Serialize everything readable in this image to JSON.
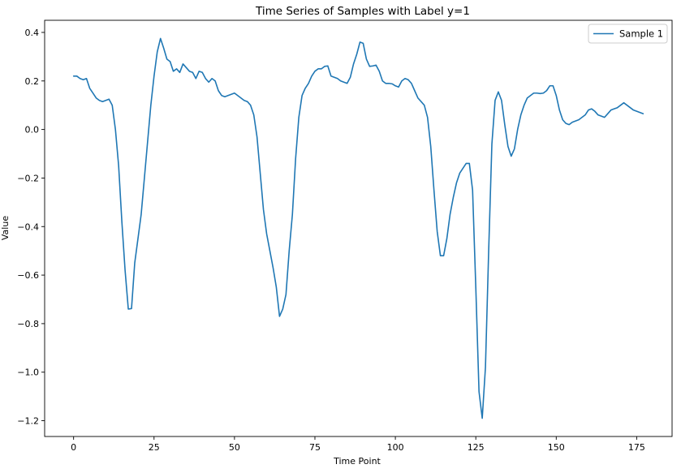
{
  "chart_data": {
    "type": "line",
    "title": "Time Series of Samples with Label y=1",
    "xlabel": "Time Point",
    "ylabel": "Value",
    "xlim": [
      -9,
      186
    ],
    "ylim": [
      -1.265,
      0.45
    ],
    "xticks": [
      0,
      25,
      50,
      75,
      100,
      125,
      150,
      175
    ],
    "xtick_labels": [
      "0",
      "25",
      "50",
      "75",
      "100",
      "125",
      "150",
      "175"
    ],
    "yticks": [
      0.4,
      0.2,
      0.0,
      -0.2,
      -0.4,
      -0.6,
      -0.8,
      -1.0,
      -1.2
    ],
    "ytick_labels": [
      "0.4",
      "0.2",
      "0.0",
      "−0.2",
      "−0.4",
      "−0.6",
      "−0.8",
      "−1.0",
      "−1.2"
    ],
    "grid": false,
    "legend_position": "top-right",
    "series": [
      {
        "name": "Sample 1",
        "color": "#1f77b4",
        "x": [
          0,
          1,
          2,
          3,
          4,
          5,
          6,
          7,
          8,
          9,
          10,
          11,
          12,
          13,
          14,
          15,
          16,
          17,
          18,
          19,
          20,
          21,
          22,
          23,
          24,
          25,
          26,
          27,
          28,
          29,
          30,
          31,
          32,
          33,
          34,
          35,
          36,
          37,
          38,
          39,
          40,
          41,
          42,
          43,
          44,
          45,
          46,
          47,
          48,
          49,
          50,
          51,
          52,
          53,
          54,
          55,
          56,
          57,
          58,
          59,
          60,
          61,
          62,
          63,
          64,
          65,
          66,
          67,
          68,
          69,
          70,
          71,
          72,
          73,
          74,
          75,
          76,
          77,
          78,
          79,
          80,
          81,
          82,
          83,
          84,
          85,
          86,
          87,
          88,
          89,
          90,
          91,
          92,
          93,
          94,
          95,
          96,
          97,
          98,
          99,
          100,
          101,
          102,
          103,
          104,
          105,
          106,
          107,
          108,
          109,
          110,
          111,
          112,
          113,
          114,
          115,
          116,
          117,
          118,
          119,
          120,
          121,
          122,
          123,
          124,
          125,
          126,
          127,
          128,
          129,
          130,
          131,
          132,
          133,
          134,
          135,
          136,
          137,
          138,
          139,
          140,
          141,
          142,
          143,
          144,
          145,
          146,
          147,
          148,
          149,
          150,
          151,
          152,
          153,
          154,
          155,
          156,
          157,
          158,
          159,
          160,
          161,
          162,
          163,
          164,
          165,
          166,
          167,
          168,
          169,
          170,
          171,
          172,
          173,
          174,
          175,
          176,
          177
        ],
        "values": [
          0.22,
          0.22,
          0.21,
          0.205,
          0.21,
          0.17,
          0.15,
          0.13,
          0.12,
          0.115,
          0.12,
          0.125,
          0.1,
          0.0,
          -0.15,
          -0.38,
          -0.58,
          -0.74,
          -0.738,
          -0.55,
          -0.45,
          -0.35,
          -0.2,
          -0.05,
          0.1,
          0.22,
          0.32,
          0.375,
          0.335,
          0.29,
          0.28,
          0.24,
          0.25,
          0.235,
          0.27,
          0.255,
          0.24,
          0.235,
          0.21,
          0.24,
          0.235,
          0.21,
          0.195,
          0.21,
          0.2,
          0.16,
          0.14,
          0.135,
          0.14,
          0.145,
          0.15,
          0.14,
          0.13,
          0.12,
          0.115,
          0.1,
          0.06,
          -0.03,
          -0.18,
          -0.33,
          -0.43,
          -0.5,
          -0.57,
          -0.65,
          -0.77,
          -0.74,
          -0.68,
          -0.5,
          -0.35,
          -0.12,
          0.05,
          0.14,
          0.17,
          0.19,
          0.22,
          0.24,
          0.25,
          0.25,
          0.26,
          0.262,
          0.22,
          0.215,
          0.21,
          0.2,
          0.195,
          0.19,
          0.215,
          0.27,
          0.31,
          0.36,
          0.355,
          0.29,
          0.26,
          0.262,
          0.265,
          0.24,
          0.2,
          0.19,
          0.19,
          0.188,
          0.18,
          0.175,
          0.2,
          0.21,
          0.205,
          0.19,
          0.16,
          0.13,
          0.115,
          0.1,
          0.05,
          -0.07,
          -0.25,
          -0.42,
          -0.52,
          -0.52,
          -0.45,
          -0.35,
          -0.28,
          -0.22,
          -0.18,
          -0.16,
          -0.14,
          -0.14,
          -0.25,
          -0.65,
          -1.08,
          -1.19,
          -0.98,
          -0.5,
          -0.06,
          0.12,
          0.155,
          0.12,
          0.02,
          -0.07,
          -0.11,
          -0.08,
          0.0,
          0.06,
          0.1,
          0.13,
          0.14,
          0.15,
          0.15,
          0.148,
          0.15,
          0.16,
          0.18,
          0.18,
          0.14,
          0.08,
          0.04,
          0.025,
          0.02,
          0.03,
          0.035,
          0.04,
          0.05,
          0.06,
          0.08,
          0.085,
          0.075,
          0.06,
          0.055,
          0.05,
          0.065,
          0.08,
          0.085,
          0.09,
          0.1,
          0.11,
          0.1,
          0.09,
          0.08,
          0.075,
          0.07,
          0.065
        ]
      }
    ]
  }
}
